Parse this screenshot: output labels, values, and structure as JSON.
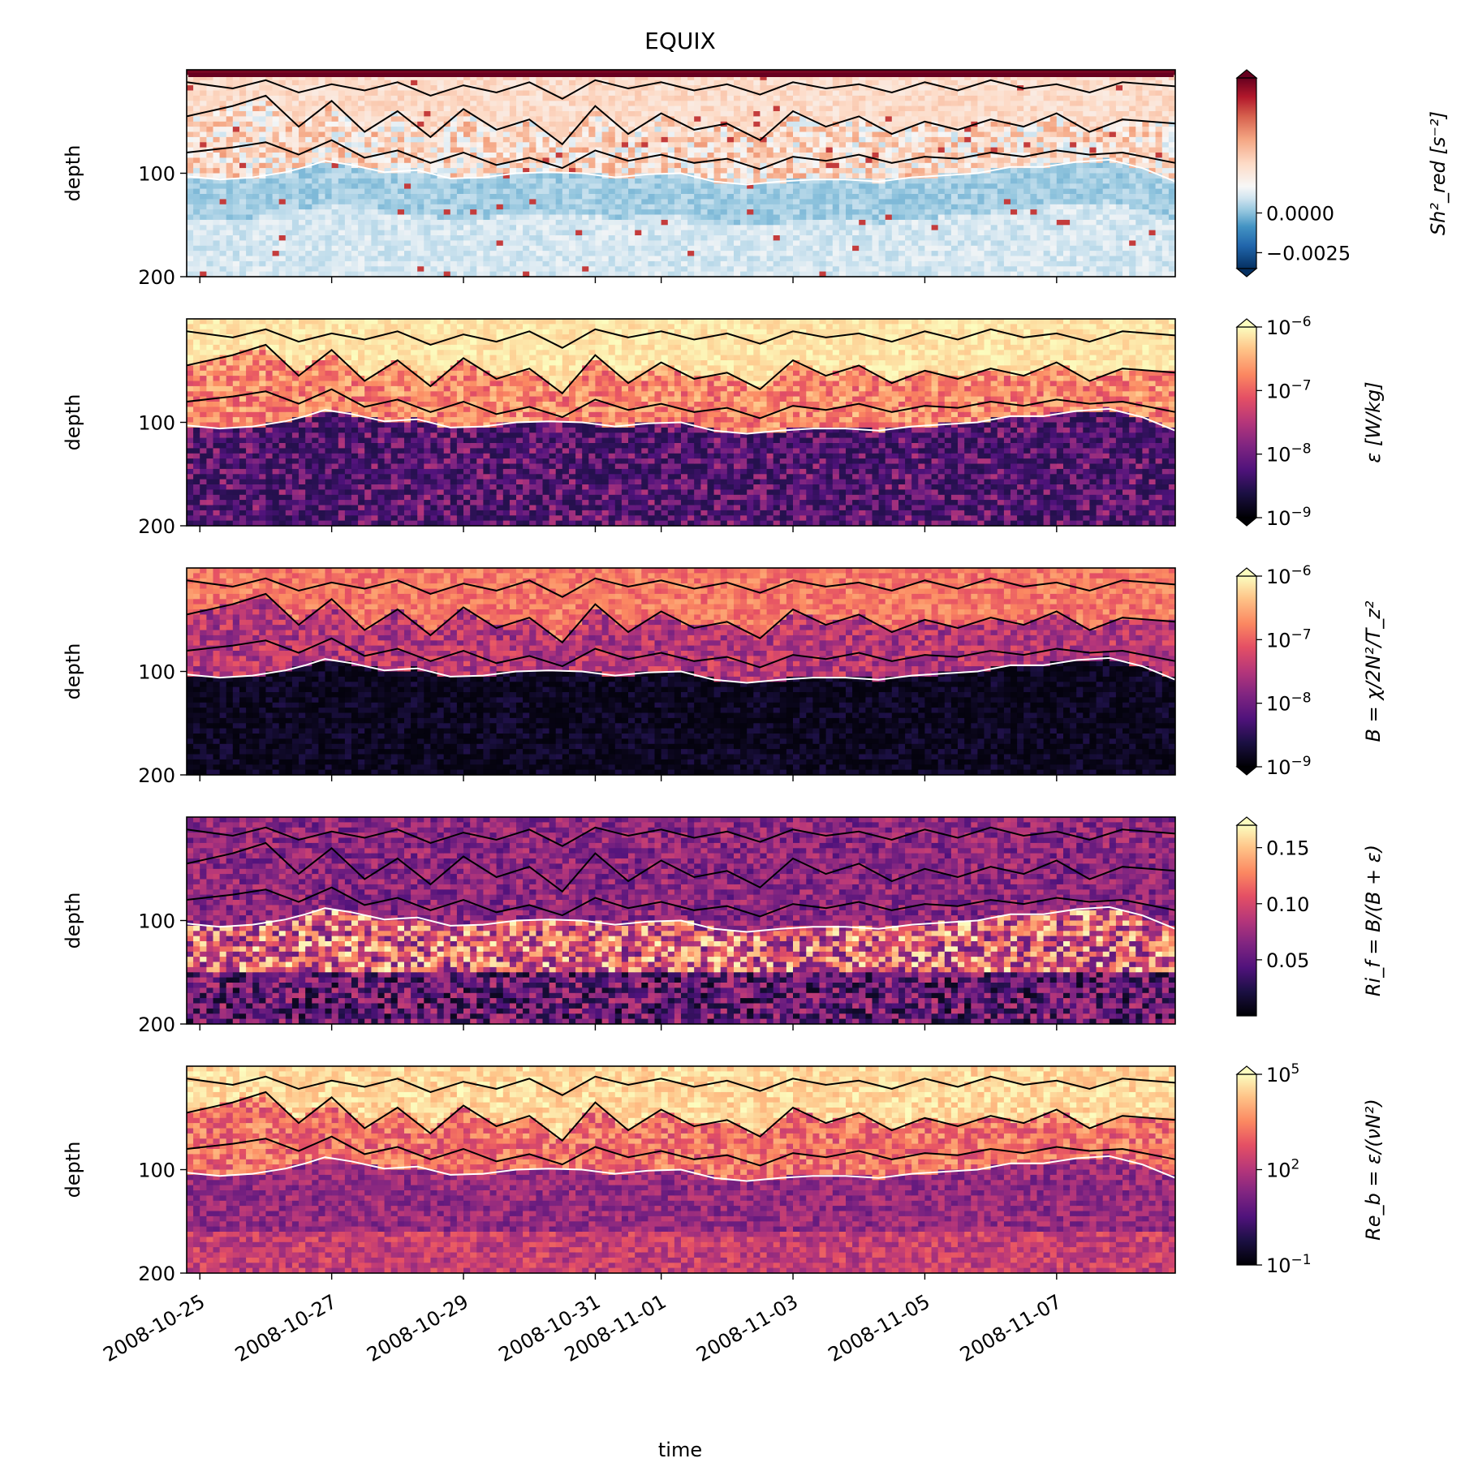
{
  "chart_data": {
    "type": "heatmap",
    "title": "EQUIX",
    "xlabel": "time",
    "x_ticks": [
      "2008-10-25",
      "2008-10-27",
      "2008-10-29",
      "2008-10-31",
      "2008-11-01",
      "2008-11-03",
      "2008-11-05",
      "2008-11-07"
    ],
    "x_tick_days": [
      0,
      2,
      4,
      6,
      7,
      9,
      11,
      13
    ],
    "xlim_days": [
      -0.2,
      14.8
    ],
    "panels": [
      {
        "ylabel": "depth",
        "ylim": [
          200,
          0
        ],
        "y_ticks": [
          "100",
          "200"
        ],
        "y_tick_values": [
          100,
          200
        ],
        "colorbar_label": "Sh²_red [s⁻²]",
        "colorbar_label_parts": [
          "Sh",
          "2",
          "red",
          " [s",
          "−2",
          "]"
        ],
        "colormap": "RdBu_r",
        "scale": "linear",
        "extend": "both",
        "colorbar_ticks": [
          "0.0000",
          "−0.0025"
        ],
        "colorbar_tick_values": [
          0.0,
          -0.0025
        ],
        "clim": [
          -0.0035,
          0.0085
        ]
      },
      {
        "ylabel": "depth",
        "ylim": [
          200,
          0
        ],
        "y_ticks": [
          "100",
          "200"
        ],
        "y_tick_values": [
          100,
          200
        ],
        "colorbar_label": "ε [W/kg]",
        "colormap": "magma",
        "scale": "log",
        "extend": "both",
        "colorbar_ticks": [
          "10",
          "10",
          "10",
          "10"
        ],
        "colorbar_tick_exponents": [
          "−6",
          "−7",
          "−8",
          "−9"
        ],
        "colorbar_tick_values": [
          1e-06,
          1e-07,
          1e-08,
          1e-09
        ],
        "clim": [
          1e-09,
          1e-06
        ]
      },
      {
        "ylabel": "depth",
        "ylim": [
          200,
          0
        ],
        "y_ticks": [
          "100",
          "200"
        ],
        "y_tick_values": [
          100,
          200
        ],
        "colorbar_label": "B = χ/2N²/T_z²",
        "colormap": "magma",
        "scale": "log",
        "extend": "both",
        "colorbar_ticks": [
          "10",
          "10",
          "10",
          "10"
        ],
        "colorbar_tick_exponents": [
          "−6",
          "−7",
          "−8",
          "−9"
        ],
        "colorbar_tick_values": [
          1e-06,
          1e-07,
          1e-08,
          1e-09
        ],
        "clim": [
          1e-09,
          1e-06
        ]
      },
      {
        "ylabel": "depth",
        "ylim": [
          200,
          0
        ],
        "y_ticks": [
          "100",
          "200"
        ],
        "y_tick_values": [
          100,
          200
        ],
        "colorbar_label": "Ri_f = B/(B + ε)",
        "colormap": "magma",
        "scale": "linear",
        "extend": "max",
        "colorbar_ticks": [
          "0.15",
          "0.10",
          "0.05"
        ],
        "colorbar_tick_values": [
          0.15,
          0.1,
          0.05
        ],
        "clim": [
          0.0,
          0.17
        ]
      },
      {
        "ylabel": "depth",
        "ylim": [
          200,
          0
        ],
        "y_ticks": [
          "100",
          "200"
        ],
        "y_tick_values": [
          100,
          200
        ],
        "colorbar_label": "Re_b = ε/(νN²)",
        "colormap": "magma",
        "scale": "log",
        "extend": "max",
        "colorbar_ticks": [
          "10",
          "10",
          "10"
        ],
        "colorbar_tick_exponents": [
          "5",
          "2",
          "−1"
        ],
        "colorbar_tick_values": [
          100000.0,
          100.0,
          0.1
        ],
        "clim": [
          0.1,
          100000.0
        ]
      }
    ],
    "overlays": {
      "mixed_layer_depth_white_line_m": [
        [
          -0.2,
          103
        ],
        [
          0.3,
          106
        ],
        [
          0.8,
          104
        ],
        [
          1.3,
          99
        ],
        [
          1.6,
          94
        ],
        [
          1.9,
          88
        ],
        [
          2.3,
          92
        ],
        [
          2.8,
          99
        ],
        [
          3.3,
          97
        ],
        [
          3.8,
          105
        ],
        [
          4.3,
          104
        ],
        [
          4.8,
          100
        ],
        [
          5.3,
          99
        ],
        [
          5.8,
          100
        ],
        [
          6.3,
          104
        ],
        [
          6.8,
          101
        ],
        [
          7.3,
          100
        ],
        [
          7.8,
          108
        ],
        [
          8.3,
          111
        ],
        [
          8.8,
          108
        ],
        [
          9.3,
          106
        ],
        [
          9.8,
          106
        ],
        [
          10.3,
          108
        ],
        [
          10.8,
          104
        ],
        [
          11.3,
          102
        ],
        [
          11.8,
          100
        ],
        [
          12.3,
          94
        ],
        [
          12.8,
          94
        ],
        [
          13.3,
          89
        ],
        [
          13.8,
          87
        ],
        [
          14.3,
          95
        ],
        [
          14.8,
          108
        ]
      ],
      "black_contours_depth_m": [
        [
          [
            -0.2,
            12
          ],
          [
            0.5,
            18
          ],
          [
            1.0,
            10
          ],
          [
            1.5,
            22
          ],
          [
            2.0,
            14
          ],
          [
            2.5,
            20
          ],
          [
            3.0,
            12
          ],
          [
            3.5,
            25
          ],
          [
            4.0,
            15
          ],
          [
            4.5,
            22
          ],
          [
            5.0,
            12
          ],
          [
            5.5,
            28
          ],
          [
            6.0,
            10
          ],
          [
            6.5,
            18
          ],
          [
            7.0,
            12
          ],
          [
            7.5,
            20
          ],
          [
            8.0,
            14
          ],
          [
            8.5,
            24
          ],
          [
            9.0,
            12
          ],
          [
            9.5,
            18
          ],
          [
            10.0,
            14
          ],
          [
            10.5,
            22
          ],
          [
            11.0,
            12
          ],
          [
            11.5,
            20
          ],
          [
            12.0,
            10
          ],
          [
            12.5,
            18
          ],
          [
            13.0,
            14
          ],
          [
            13.5,
            22
          ],
          [
            14.0,
            12
          ],
          [
            14.8,
            16
          ]
        ],
        [
          [
            -0.2,
            45
          ],
          [
            0.5,
            35
          ],
          [
            1.0,
            25
          ],
          [
            1.5,
            55
          ],
          [
            2.0,
            30
          ],
          [
            2.5,
            60
          ],
          [
            3.0,
            40
          ],
          [
            3.5,
            65
          ],
          [
            4.0,
            38
          ],
          [
            4.5,
            58
          ],
          [
            5.0,
            48
          ],
          [
            5.5,
            72
          ],
          [
            6.0,
            35
          ],
          [
            6.5,
            62
          ],
          [
            7.0,
            42
          ],
          [
            7.5,
            58
          ],
          [
            8.0,
            52
          ],
          [
            8.5,
            68
          ],
          [
            9.0,
            40
          ],
          [
            9.5,
            55
          ],
          [
            10.0,
            45
          ],
          [
            10.5,
            62
          ],
          [
            11.0,
            50
          ],
          [
            11.5,
            58
          ],
          [
            12.0,
            48
          ],
          [
            12.5,
            55
          ],
          [
            13.0,
            42
          ],
          [
            13.5,
            60
          ],
          [
            14.0,
            48
          ],
          [
            14.8,
            52
          ]
        ],
        [
          [
            -0.2,
            80
          ],
          [
            0.5,
            75
          ],
          [
            1.0,
            70
          ],
          [
            1.5,
            82
          ],
          [
            2.0,
            68
          ],
          [
            2.5,
            85
          ],
          [
            3.0,
            78
          ],
          [
            3.5,
            90
          ],
          [
            4.0,
            80
          ],
          [
            4.5,
            92
          ],
          [
            5.0,
            85
          ],
          [
            5.5,
            95
          ],
          [
            6.0,
            78
          ],
          [
            6.5,
            88
          ],
          [
            7.0,
            82
          ],
          [
            7.5,
            90
          ],
          [
            8.0,
            86
          ],
          [
            8.5,
            96
          ],
          [
            9.0,
            84
          ],
          [
            9.5,
            88
          ],
          [
            10.0,
            82
          ],
          [
            10.5,
            90
          ],
          [
            11.0,
            84
          ],
          [
            11.5,
            86
          ],
          [
            12.0,
            80
          ],
          [
            12.5,
            84
          ],
          [
            13.0,
            78
          ],
          [
            13.5,
            82
          ],
          [
            14.0,
            80
          ],
          [
            14.8,
            90
          ]
        ]
      ]
    }
  }
}
